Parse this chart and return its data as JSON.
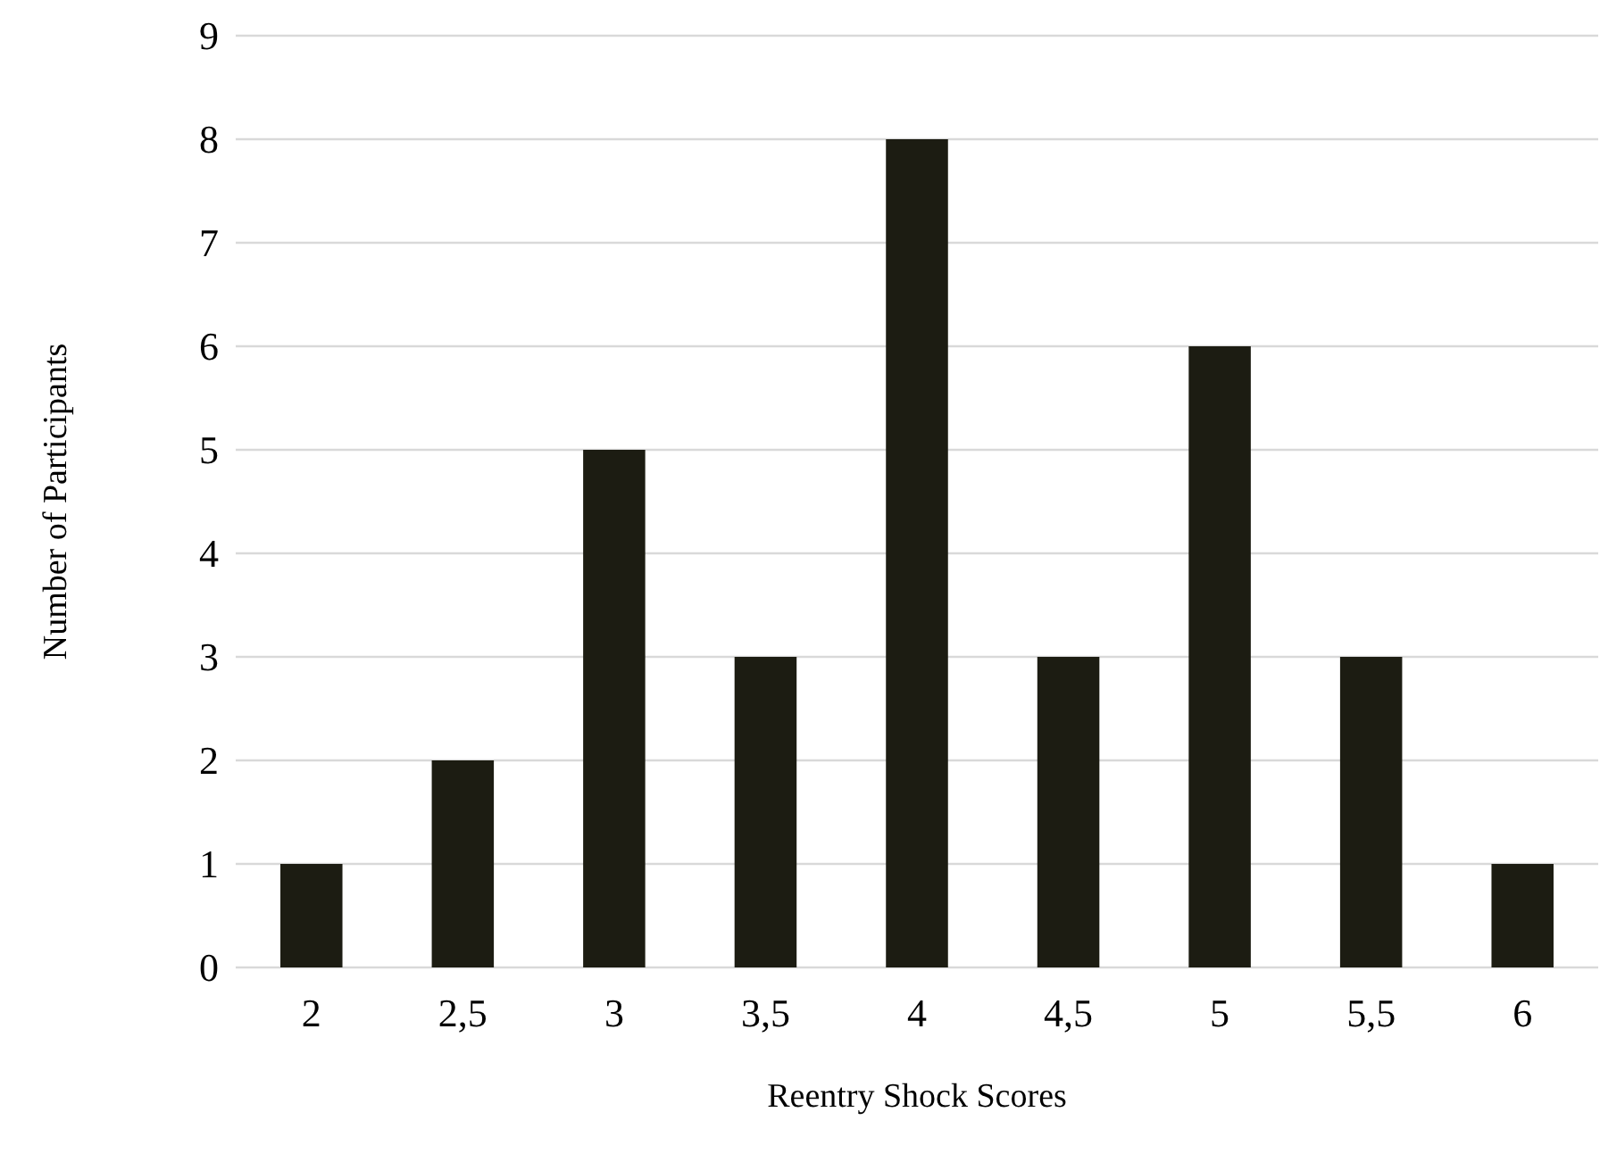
{
  "chart_data": {
    "type": "bar",
    "xlabel": "Reentry Shock Scores",
    "ylabel": "Number of Participants",
    "categories": [
      "2",
      "2,5",
      "3",
      "3,5",
      "4",
      "4,5",
      "5",
      "5,5",
      "6"
    ],
    "values": [
      1,
      2,
      5,
      3,
      8,
      3,
      6,
      3,
      1
    ],
    "color": "#1c1c12",
    "ylim": [
      0,
      9
    ],
    "yticks": [
      0,
      1,
      2,
      3,
      4,
      5,
      6,
      7,
      8,
      9
    ],
    "grid": "y"
  }
}
